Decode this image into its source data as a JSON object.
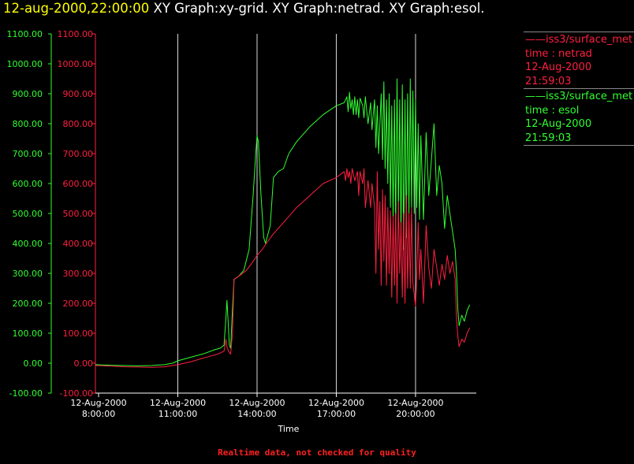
{
  "header": {
    "timestamp": "12-aug-2000,22:00:00",
    "graphs": "XY Graph:xy-grid.  XY Graph:netrad.  XY Graph:esol."
  },
  "legend": [
    {
      "dataset": "——iss3/surface_met",
      "var": "time : netrad",
      "date": "12-Aug-2000",
      "time": "21:59:03",
      "color": "#ff2040"
    },
    {
      "dataset": "——iss3/surface_met",
      "var": "time : esol",
      "date": "12-Aug-2000",
      "time": "21:59:03",
      "color": "#30ff30"
    }
  ],
  "footer": "Realtime data, not checked for quality",
  "chart_data": {
    "type": "line",
    "xlabel": "Time",
    "x_ticks": [
      {
        "hour": 8,
        "date": "12-Aug-2000",
        "time": "8:00:00"
      },
      {
        "hour": 11,
        "date": "12-Aug-2000",
        "time": "11:00:00"
      },
      {
        "hour": 14,
        "date": "12-Aug-2000",
        "time": "14:00:00"
      },
      {
        "hour": 17,
        "date": "12-Aug-2000",
        "time": "17:00:00"
      },
      {
        "hour": 20,
        "date": "12-Aug-2000",
        "time": "20:00:00"
      }
    ],
    "xlim": [
      7.88,
      22.3
    ],
    "ylim": [
      -100,
      1100
    ],
    "y_ticks": [
      "-100.00",
      "0.00",
      "100.00",
      "200.00",
      "300.00",
      "400.00",
      "500.00",
      "600.00",
      "700.00",
      "800.00",
      "900.00",
      "1000.00",
      "1100.00"
    ],
    "vertical_grid_hours": [
      11,
      14,
      17,
      20
    ],
    "series": [
      {
        "key": "esol",
        "color": "#30ff30",
        "points": [
          [
            7.88,
            -5
          ],
          [
            8.5,
            -7
          ],
          [
            9.0,
            -8
          ],
          [
            9.5,
            -9
          ],
          [
            10.0,
            -8
          ],
          [
            10.5,
            -5
          ],
          [
            10.8,
            0
          ],
          [
            11.0,
            8
          ],
          [
            11.5,
            20
          ],
          [
            12.0,
            32
          ],
          [
            12.4,
            45
          ],
          [
            12.6,
            50
          ],
          [
            12.75,
            60
          ],
          [
            12.82,
            150
          ],
          [
            12.86,
            210
          ],
          [
            12.9,
            150
          ],
          [
            12.95,
            60
          ],
          [
            13.0,
            50
          ],
          [
            13.07,
            180
          ],
          [
            13.13,
            280
          ],
          [
            13.3,
            290
          ],
          [
            13.5,
            310
          ],
          [
            13.7,
            380
          ],
          [
            13.85,
            560
          ],
          [
            13.95,
            700
          ],
          [
            14.0,
            760
          ],
          [
            14.05,
            740
          ],
          [
            14.15,
            560
          ],
          [
            14.25,
            420
          ],
          [
            14.32,
            400
          ],
          [
            14.5,
            460
          ],
          [
            14.62,
            620
          ],
          [
            14.8,
            640
          ],
          [
            15.0,
            650
          ],
          [
            15.2,
            700
          ],
          [
            15.5,
            740
          ],
          [
            16.0,
            790
          ],
          [
            16.5,
            830
          ],
          [
            17.0,
            860
          ],
          [
            17.3,
            870
          ],
          [
            17.4,
            890
          ],
          [
            17.45,
            840
          ],
          [
            17.5,
            905
          ],
          [
            17.55,
            850
          ],
          [
            17.6,
            880
          ],
          [
            17.65,
            830
          ],
          [
            17.7,
            890
          ],
          [
            17.75,
            830
          ],
          [
            17.8,
            880
          ],
          [
            17.85,
            820
          ],
          [
            17.9,
            885
          ],
          [
            18.0,
            860
          ],
          [
            18.05,
            820
          ],
          [
            18.1,
            890
          ],
          [
            18.2,
            800
          ],
          [
            18.3,
            870
          ],
          [
            18.35,
            780
          ],
          [
            18.45,
            880
          ],
          [
            18.5,
            720
          ],
          [
            18.55,
            860
          ],
          [
            18.6,
            700
          ],
          [
            18.7,
            900
          ],
          [
            18.75,
            680
          ],
          [
            18.8,
            940
          ],
          [
            18.85,
            650
          ],
          [
            18.9,
            880
          ],
          [
            18.95,
            600
          ],
          [
            19.0,
            900
          ],
          [
            19.05,
            520
          ],
          [
            19.1,
            860
          ],
          [
            19.15,
            480
          ],
          [
            19.2,
            880
          ],
          [
            19.25,
            450
          ],
          [
            19.3,
            950
          ],
          [
            19.35,
            500
          ],
          [
            19.4,
            880
          ],
          [
            19.45,
            420
          ],
          [
            19.5,
            930
          ],
          [
            19.55,
            380
          ],
          [
            19.6,
            880
          ],
          [
            19.65,
            420
          ],
          [
            19.7,
            900
          ],
          [
            19.75,
            500
          ],
          [
            19.8,
            950
          ],
          [
            19.85,
            520
          ],
          [
            19.9,
            910
          ],
          [
            19.95,
            500
          ],
          [
            20.0,
            880
          ],
          [
            20.05,
            520
          ],
          [
            20.1,
            800
          ],
          [
            20.15,
            480
          ],
          [
            20.2,
            760
          ],
          [
            20.3,
            480
          ],
          [
            20.4,
            770
          ],
          [
            20.5,
            560
          ],
          [
            20.6,
            680
          ],
          [
            20.7,
            800
          ],
          [
            20.8,
            560
          ],
          [
            20.9,
            660
          ],
          [
            21.0,
            600
          ],
          [
            21.1,
            450
          ],
          [
            21.2,
            560
          ],
          [
            21.3,
            500
          ],
          [
            21.4,
            440
          ],
          [
            21.5,
            380
          ],
          [
            21.55,
            300
          ],
          [
            21.6,
            180
          ],
          [
            21.65,
            125
          ],
          [
            21.75,
            160
          ],
          [
            21.85,
            140
          ],
          [
            21.95,
            175
          ],
          [
            22.05,
            195
          ]
        ]
      },
      {
        "key": "netrad",
        "color": "#ff2040",
        "points": [
          [
            7.88,
            -8
          ],
          [
            8.5,
            -10
          ],
          [
            9.0,
            -12
          ],
          [
            9.5,
            -13
          ],
          [
            10.0,
            -14
          ],
          [
            10.5,
            -12
          ],
          [
            11.0,
            -5
          ],
          [
            11.5,
            5
          ],
          [
            12.0,
            18
          ],
          [
            12.5,
            30
          ],
          [
            12.75,
            40
          ],
          [
            12.82,
            80
          ],
          [
            12.86,
            55
          ],
          [
            12.92,
            40
          ],
          [
            13.0,
            30
          ],
          [
            13.07,
            100
          ],
          [
            13.13,
            280
          ],
          [
            13.3,
            290
          ],
          [
            13.6,
            310
          ],
          [
            13.85,
            340
          ],
          [
            14.0,
            360
          ],
          [
            14.2,
            380
          ],
          [
            14.35,
            400
          ],
          [
            14.6,
            430
          ],
          [
            15.0,
            470
          ],
          [
            15.5,
            520
          ],
          [
            16.0,
            560
          ],
          [
            16.5,
            600
          ],
          [
            17.0,
            620
          ],
          [
            17.3,
            640
          ],
          [
            17.35,
            610
          ],
          [
            17.4,
            650
          ],
          [
            17.45,
            620
          ],
          [
            17.5,
            640
          ],
          [
            17.55,
            600
          ],
          [
            17.6,
            650
          ],
          [
            17.7,
            610
          ],
          [
            17.8,
            640
          ],
          [
            17.85,
            560
          ],
          [
            17.9,
            640
          ],
          [
            18.0,
            600
          ],
          [
            18.05,
            650
          ],
          [
            18.1,
            520
          ],
          [
            18.2,
            610
          ],
          [
            18.3,
            520
          ],
          [
            18.35,
            600
          ],
          [
            18.45,
            520
          ],
          [
            18.5,
            300
          ],
          [
            18.55,
            640
          ],
          [
            18.6,
            380
          ],
          [
            18.65,
            540
          ],
          [
            18.7,
            260
          ],
          [
            18.75,
            580
          ],
          [
            18.8,
            340
          ],
          [
            18.85,
            560
          ],
          [
            18.9,
            260
          ],
          [
            18.95,
            520
          ],
          [
            19.0,
            300
          ],
          [
            19.05,
            510
          ],
          [
            19.1,
            220
          ],
          [
            19.15,
            490
          ],
          [
            19.2,
            260
          ],
          [
            19.25,
            500
          ],
          [
            19.3,
            200
          ],
          [
            19.35,
            540
          ],
          [
            19.4,
            300
          ],
          [
            19.45,
            470
          ],
          [
            19.5,
            220
          ],
          [
            19.55,
            500
          ],
          [
            19.6,
            200
          ],
          [
            19.65,
            560
          ],
          [
            19.7,
            250
          ],
          [
            19.75,
            500
          ],
          [
            19.8,
            250
          ],
          [
            19.85,
            520
          ],
          [
            19.9,
            270
          ],
          [
            20.0,
            190
          ],
          [
            20.05,
            300
          ],
          [
            20.1,
            470
          ],
          [
            20.15,
            280
          ],
          [
            20.2,
            380
          ],
          [
            20.3,
            200
          ],
          [
            20.4,
            460
          ],
          [
            20.5,
            320
          ],
          [
            20.6,
            250
          ],
          [
            20.7,
            380
          ],
          [
            20.8,
            320
          ],
          [
            20.9,
            260
          ],
          [
            21.0,
            330
          ],
          [
            21.1,
            280
          ],
          [
            21.2,
            360
          ],
          [
            21.3,
            300
          ],
          [
            21.4,
            340
          ],
          [
            21.5,
            280
          ],
          [
            21.55,
            150
          ],
          [
            21.6,
            90
          ],
          [
            21.65,
            55
          ],
          [
            21.75,
            80
          ],
          [
            21.85,
            70
          ],
          [
            21.95,
            100
          ],
          [
            22.05,
            118
          ]
        ]
      }
    ]
  }
}
